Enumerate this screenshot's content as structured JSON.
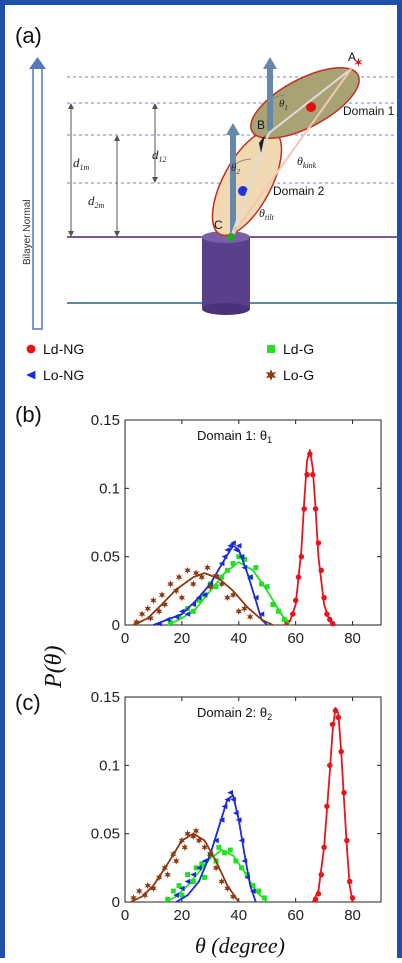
{
  "panel_labels": {
    "a": "(a)",
    "b": "(b)",
    "c": "(c)"
  },
  "schematic": {
    "points": {
      "A": "A",
      "B": "B",
      "C": "C"
    },
    "domain1_label": "Domain 1",
    "domain2_label": "Domain 2",
    "bilayer_normal": "Bilayer Normal",
    "d1m": "d",
    "d1m_sub": "1m",
    "d2m": "d",
    "d2m_sub": "2m",
    "d12": "d",
    "d12_sub": "12",
    "theta1": "θ",
    "theta1_sub": "1",
    "theta2": "θ",
    "theta2_sub": "2",
    "theta_kink": "θ",
    "theta_kink_sub": "kink",
    "theta_tilt": "θ",
    "theta_tilt_sub": "tilt",
    "colors": {
      "domain1": "#a8a275",
      "domain2": "#f1d9b4",
      "cylinder": "#5a3f8a",
      "dashed": "#6f8ac9",
      "bilayer": "#8a6f9e"
    }
  },
  "legend": [
    {
      "label": "Ld-NG",
      "color": "#e8141c",
      "marker": "circle"
    },
    {
      "label": "Ld-G",
      "color": "#22e022",
      "marker": "square"
    },
    {
      "label": "Lo-NG",
      "color": "#1b2bd6",
      "marker": "triangle"
    },
    {
      "label": "Lo-G",
      "color": "#8b3a12",
      "marker": "star"
    }
  ],
  "y_axis_label": "P(θ)",
  "x_axis_label": "θ (degree)",
  "chart_data": [
    {
      "type": "line",
      "title": "Domain 1: θ1",
      "title_main": "Domain 1: θ",
      "title_sub": "1",
      "xlim": [
        0,
        90
      ],
      "ylim": [
        0,
        0.15
      ],
      "xticks": [
        0,
        20,
        40,
        60,
        80
      ],
      "yticks": [
        0,
        0.05,
        0.1,
        0.15
      ],
      "ytick_labels": [
        "0",
        "0.05",
        "0.1",
        "0.15"
      ],
      "series": [
        {
          "name": "Ld-NG",
          "color": "#e8141c",
          "marker": "circle",
          "fit": [
            [
              56,
              0
            ],
            [
              58,
              0.003
            ],
            [
              60,
              0.015
            ],
            [
              62,
              0.055
            ],
            [
              63,
              0.09
            ],
            [
              64,
              0.12
            ],
            [
              65,
              0.128
            ],
            [
              66,
              0.115
            ],
            [
              67,
              0.085
            ],
            [
              68,
              0.05
            ],
            [
              70,
              0.015
            ],
            [
              72,
              0.003
            ],
            [
              74,
              0
            ]
          ],
          "points": [
            [
              57,
              0.002
            ],
            [
              59,
              0.008
            ],
            [
              60,
              0.018
            ],
            [
              61,
              0.035
            ],
            [
              62,
              0.05
            ],
            [
              63,
              0.085
            ],
            [
              64,
              0.11
            ],
            [
              65,
              0.125
            ],
            [
              66,
              0.11
            ],
            [
              67,
              0.085
            ],
            [
              68,
              0.06
            ],
            [
              69,
              0.04
            ],
            [
              70,
              0.02
            ],
            [
              71,
              0.008
            ],
            [
              72,
              0.004
            ],
            [
              73,
              0.001
            ]
          ]
        },
        {
          "name": "Ld-G",
          "color": "#22e022",
          "marker": "square",
          "fit": [
            [
              15,
              0
            ],
            [
              20,
              0.005
            ],
            [
              25,
              0.012
            ],
            [
              30,
              0.025
            ],
            [
              35,
              0.038
            ],
            [
              40,
              0.046
            ],
            [
              45,
              0.04
            ],
            [
              50,
              0.025
            ],
            [
              55,
              0.008
            ],
            [
              58,
              0
            ]
          ],
          "points": [
            [
              16,
              0.002
            ],
            [
              19,
              0.006
            ],
            [
              22,
              0.012
            ],
            [
              24,
              0.01
            ],
            [
              26,
              0.018
            ],
            [
              28,
              0.022
            ],
            [
              30,
              0.03
            ],
            [
              32,
              0.028
            ],
            [
              34,
              0.035
            ],
            [
              36,
              0.04
            ],
            [
              38,
              0.045
            ],
            [
              40,
              0.05
            ],
            [
              42,
              0.048
            ],
            [
              44,
              0.035
            ],
            [
              46,
              0.042
            ],
            [
              48,
              0.03
            ],
            [
              50,
              0.028
            ],
            [
              52,
              0.015
            ],
            [
              54,
              0.01
            ],
            [
              56,
              0.004
            ]
          ]
        },
        {
          "name": "Lo-NG",
          "color": "#1b2bd6",
          "marker": "triangle",
          "fit": [
            [
              10,
              0
            ],
            [
              20,
              0.008
            ],
            [
              25,
              0.018
            ],
            [
              30,
              0.03
            ],
            [
              35,
              0.048
            ],
            [
              38,
              0.058
            ],
            [
              40,
              0.055
            ],
            [
              43,
              0.038
            ],
            [
              46,
              0.018
            ],
            [
              48,
              0.004
            ],
            [
              50,
              0
            ]
          ],
          "points": [
            [
              12,
              0.001
            ],
            [
              15,
              0.004
            ],
            [
              18,
              0.006
            ],
            [
              20,
              0.01
            ],
            [
              22,
              0.008
            ],
            [
              24,
              0.015
            ],
            [
              26,
              0.02
            ],
            [
              28,
              0.022
            ],
            [
              30,
              0.03
            ],
            [
              32,
              0.035
            ],
            [
              34,
              0.045
            ],
            [
              35,
              0.05
            ],
            [
              36,
              0.055
            ],
            [
              37,
              0.058
            ],
            [
              38,
              0.06
            ],
            [
              39,
              0.055
            ],
            [
              40,
              0.058
            ],
            [
              41,
              0.05
            ],
            [
              42,
              0.042
            ],
            [
              44,
              0.035
            ],
            [
              46,
              0.02
            ],
            [
              48,
              0.008
            ]
          ]
        },
        {
          "name": "Lo-G",
          "color": "#8b3a12",
          "marker": "star",
          "fit": [
            [
              3,
              0
            ],
            [
              8,
              0.005
            ],
            [
              12,
              0.013
            ],
            [
              18,
              0.026
            ],
            [
              24,
              0.035
            ],
            [
              28,
              0.038
            ],
            [
              33,
              0.034
            ],
            [
              38,
              0.025
            ],
            [
              43,
              0.013
            ],
            [
              48,
              0.004
            ],
            [
              52,
              0
            ]
          ],
          "points": [
            [
              4,
              0.002
            ],
            [
              6,
              0.008
            ],
            [
              8,
              0.012
            ],
            [
              9,
              0.005
            ],
            [
              10,
              0.018
            ],
            [
              12,
              0.01
            ],
            [
              13,
              0.022
            ],
            [
              14,
              0.015
            ],
            [
              16,
              0.03
            ],
            [
              18,
              0.025
            ],
            [
              19,
              0.035
            ],
            [
              20,
              0.02
            ],
            [
              22,
              0.04
            ],
            [
              24,
              0.03
            ],
            [
              25,
              0.038
            ],
            [
              27,
              0.035
            ],
            [
              29,
              0.042
            ],
            [
              30,
              0.028
            ],
            [
              32,
              0.036
            ],
            [
              34,
              0.03
            ],
            [
              36,
              0.02
            ],
            [
              38,
              0.022
            ],
            [
              40,
              0.01
            ],
            [
              42,
              0.012
            ],
            [
              44,
              0.006
            ]
          ]
        }
      ]
    },
    {
      "type": "line",
      "title": "Domain 2: θ2",
      "title_main": "Domain 2: θ",
      "title_sub": "2",
      "xlim": [
        0,
        90
      ],
      "ylim": [
        0,
        0.15
      ],
      "xticks": [
        0,
        20,
        40,
        60,
        80
      ],
      "yticks": [
        0,
        0.05,
        0.1,
        0.15
      ],
      "ytick_labels": [
        "0",
        "0.05",
        "0.1",
        "0.15"
      ],
      "series": [
        {
          "name": "Ld-NG",
          "color": "#e8141c",
          "marker": "circle",
          "fit": [
            [
              66,
              0
            ],
            [
              68,
              0.008
            ],
            [
              70,
              0.04
            ],
            [
              72,
              0.095
            ],
            [
              73,
              0.125
            ],
            [
              74,
              0.142
            ],
            [
              75,
              0.138
            ],
            [
              76,
              0.11
            ],
            [
              77,
              0.075
            ],
            [
              78,
              0.04
            ],
            [
              79,
              0.012
            ],
            [
              80,
              0
            ]
          ],
          "points": [
            [
              67,
              0.002
            ],
            [
              68,
              0.006
            ],
            [
              69,
              0.02
            ],
            [
              70,
              0.04
            ],
            [
              71,
              0.07
            ],
            [
              72,
              0.1
            ],
            [
              73,
              0.13
            ],
            [
              74,
              0.14
            ],
            [
              75,
              0.135
            ],
            [
              76,
              0.11
            ],
            [
              77,
              0.08
            ],
            [
              78,
              0.045
            ],
            [
              79,
              0.015
            ],
            [
              80,
              0.003
            ]
          ]
        },
        {
          "name": "Ld-G",
          "color": "#22e022",
          "marker": "square",
          "fit": [
            [
              14,
              0
            ],
            [
              18,
              0.004
            ],
            [
              22,
              0.012
            ],
            [
              26,
              0.022
            ],
            [
              30,
              0.032
            ],
            [
              34,
              0.038
            ],
            [
              38,
              0.034
            ],
            [
              42,
              0.022
            ],
            [
              46,
              0.008
            ],
            [
              50,
              0
            ]
          ],
          "points": [
            [
              15,
              0.002
            ],
            [
              17,
              0.008
            ],
            [
              19,
              0.012
            ],
            [
              20,
              0.005
            ],
            [
              22,
              0.02
            ],
            [
              24,
              0.015
            ],
            [
              25,
              0.025
            ],
            [
              27,
              0.028
            ],
            [
              28,
              0.018
            ],
            [
              30,
              0.035
            ],
            [
              32,
              0.03
            ],
            [
              33,
              0.04
            ],
            [
              35,
              0.036
            ],
            [
              37,
              0.038
            ],
            [
              39,
              0.03
            ],
            [
              41,
              0.025
            ],
            [
              43,
              0.02
            ],
            [
              45,
              0.012
            ],
            [
              47,
              0.008
            ],
            [
              49,
              0.003
            ]
          ]
        },
        {
          "name": "Lo-NG",
          "color": "#1b2bd6",
          "marker": "triangle",
          "fit": [
            [
              18,
              0
            ],
            [
              22,
              0.005
            ],
            [
              26,
              0.015
            ],
            [
              30,
              0.035
            ],
            [
              33,
              0.055
            ],
            [
              36,
              0.075
            ],
            [
              38,
              0.078
            ],
            [
              40,
              0.06
            ],
            [
              42,
              0.035
            ],
            [
              44,
              0.012
            ],
            [
              46,
              0
            ]
          ],
          "points": [
            [
              18,
              0.005
            ],
            [
              20,
              0.01
            ],
            [
              22,
              0.015
            ],
            [
              24,
              0.02
            ],
            [
              26,
              0.025
            ],
            [
              28,
              0.03
            ],
            [
              30,
              0.035
            ],
            [
              32,
              0.045
            ],
            [
              34,
              0.06
            ],
            [
              35,
              0.07
            ],
            [
              36,
              0.075
            ],
            [
              37,
              0.08
            ],
            [
              38,
              0.075
            ],
            [
              39,
              0.065
            ],
            [
              40,
              0.06
            ],
            [
              41,
              0.045
            ],
            [
              42,
              0.03
            ],
            [
              43,
              0.018
            ],
            [
              45,
              0.008
            ]
          ]
        },
        {
          "name": "Lo-G",
          "color": "#8b3a12",
          "marker": "star",
          "fit": [
            [
              2,
              0
            ],
            [
              6,
              0.004
            ],
            [
              10,
              0.012
            ],
            [
              15,
              0.028
            ],
            [
              20,
              0.045
            ],
            [
              24,
              0.05
            ],
            [
              28,
              0.045
            ],
            [
              32,
              0.03
            ],
            [
              36,
              0.012
            ],
            [
              40,
              0
            ]
          ],
          "points": [
            [
              3,
              0.003
            ],
            [
              5,
              0.008
            ],
            [
              7,
              0.005
            ],
            [
              8,
              0.012
            ],
            [
              10,
              0.01
            ],
            [
              12,
              0.018
            ],
            [
              14,
              0.025
            ],
            [
              15,
              0.02
            ],
            [
              17,
              0.035
            ],
            [
              18,
              0.03
            ],
            [
              20,
              0.045
            ],
            [
              21,
              0.04
            ],
            [
              22,
              0.05
            ],
            [
              24,
              0.048
            ],
            [
              25,
              0.052
            ],
            [
              26,
              0.045
            ],
            [
              28,
              0.04
            ],
            [
              30,
              0.035
            ],
            [
              32,
              0.025
            ],
            [
              34,
              0.015
            ],
            [
              36,
              0.01
            ],
            [
              38,
              0.004
            ]
          ]
        }
      ]
    }
  ]
}
